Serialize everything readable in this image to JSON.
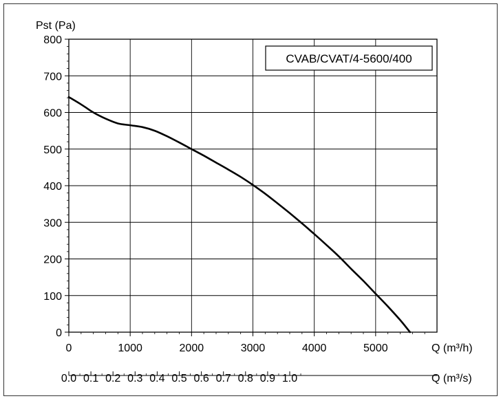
{
  "chart_data": {
    "type": "line",
    "title": "",
    "ylabel": "Pst (Pa)",
    "xlabel": "Q",
    "ylim": [
      0,
      800
    ],
    "yticks": [
      0,
      100,
      200,
      300,
      400,
      500,
      600,
      700,
      800
    ],
    "xlim": [
      0,
      6000
    ],
    "xticks": [
      0,
      1000,
      2000,
      3000,
      4000,
      5000
    ],
    "xunit": "m³/h",
    "x2ticks": [
      "0.0",
      "0.1",
      "0.2",
      "0.3",
      "0.4",
      "0.5",
      "0.6",
      "0.7",
      "0.8",
      "0.9",
      "1.0"
    ],
    "x2unit": "m³/s",
    "x2_per_x": 0.00027778,
    "grid": true,
    "legend_text": "CVAB/CVAT/4-5600/400",
    "legend_position": "top-right",
    "series": [
      {
        "x": [
          0,
          200,
          400,
          600,
          800,
          1000,
          1200,
          1400,
          1600,
          1800,
          2000,
          2200,
          2400,
          2600,
          2800,
          3000,
          3200,
          3400,
          3600,
          3800,
          4000,
          4200,
          4400,
          4600,
          4800,
          5000,
          5200,
          5400,
          5560
        ],
        "y": [
          642,
          622,
          600,
          583,
          570,
          565,
          560,
          550,
          535,
          518,
          500,
          482,
          463,
          444,
          424,
          402,
          378,
          352,
          325,
          297,
          268,
          238,
          207,
          173,
          140,
          105,
          70,
          33,
          0
        ],
        "color": "#000000"
      }
    ]
  }
}
